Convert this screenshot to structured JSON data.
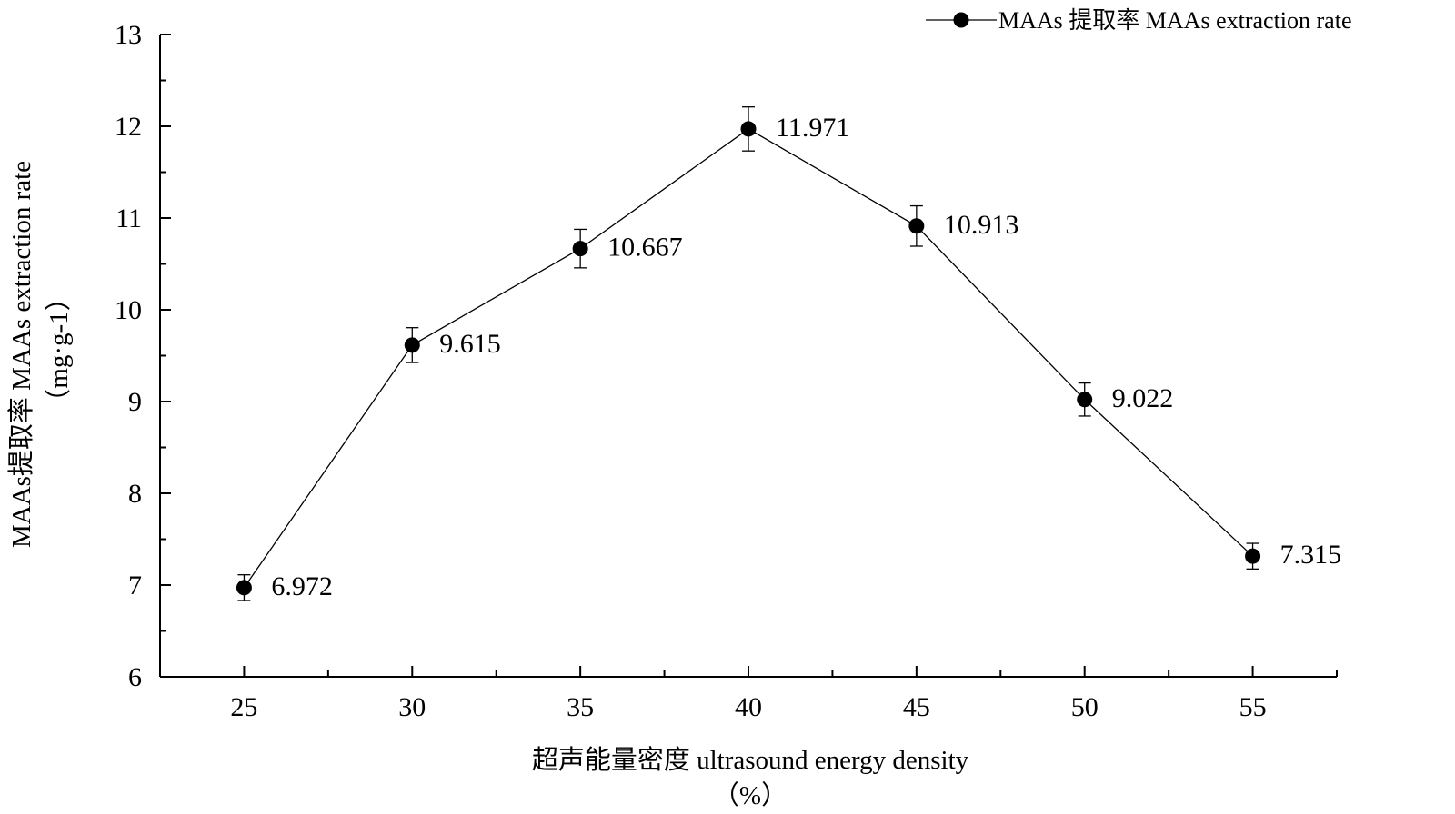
{
  "chart_data": {
    "type": "line",
    "x": [
      25,
      30,
      35,
      40,
      45,
      50,
      55
    ],
    "series": [
      {
        "name": "MAAs 提取率 MAAs extraction rate",
        "values": [
          6.972,
          9.615,
          10.667,
          11.971,
          10.913,
          9.022,
          7.315
        ],
        "errors": [
          0.14,
          0.19,
          0.21,
          0.24,
          0.22,
          0.18,
          0.14
        ],
        "data_labels": [
          "6.972",
          "9.615",
          "10.667",
          "11.971",
          "10.913",
          "9.022",
          "7.315"
        ],
        "color": "#000000"
      }
    ],
    "xlabel": "超声能量密度 ultrasound energy density",
    "xlabel_unit": "（%）",
    "ylabel": "MAAs提取率 MAAs extraction rate",
    "ylabel_unit": "（mg·g-1）",
    "xlim": [
      22.5,
      57.5
    ],
    "ylim": [
      6,
      13
    ],
    "xticks": [
      "25",
      "30",
      "35",
      "40",
      "45",
      "50",
      "55"
    ],
    "yticks": [
      "6",
      "7",
      "8",
      "9",
      "10",
      "11",
      "12",
      "13"
    ],
    "legend": "top-right",
    "grid": false
  }
}
